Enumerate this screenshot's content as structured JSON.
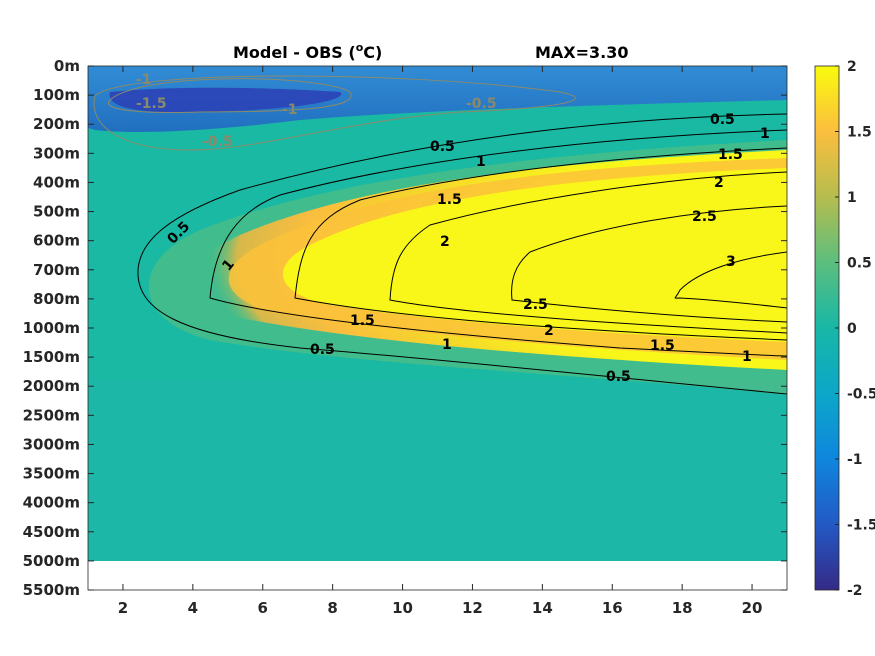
{
  "chart_data": {
    "type": "heatmap",
    "title": "Model - OBS (°C)",
    "title_left": "Model - OBS (",
    "title_sup": "o",
    "title_right": "C)",
    "max_label": "MAX=3.30",
    "x_ticks": [
      2,
      4,
      6,
      8,
      10,
      12,
      14,
      16,
      18,
      20
    ],
    "xlim": [
      1,
      21
    ],
    "y_ticks": [
      "0m",
      "100m",
      "200m",
      "300m",
      "400m",
      "500m",
      "600m",
      "700m",
      "800m",
      "1000m",
      "1500m",
      "2000m",
      "2500m",
      "3000m",
      "3500m",
      "4000m",
      "4500m",
      "5000m",
      "5500m"
    ],
    "y_reversed": true,
    "data_bottom_level": "5000m",
    "colormap": "parula",
    "clim": [
      -2,
      2
    ],
    "colorbar_ticks": [
      "2",
      "1.5",
      "1",
      "0.5",
      "0",
      "-0.5",
      "-1",
      "-1.5",
      "-2"
    ],
    "contour_levels_positive": [
      0.5,
      1,
      1.5,
      2,
      2.5,
      3
    ],
    "contour_levels_negative": [
      -0.5,
      -1,
      -1.5
    ],
    "contour_labels": [
      "0.5",
      "1",
      "1.5",
      "2",
      "2.5",
      "3",
      "0.5",
      "1",
      "1.5",
      "2",
      "2.5",
      "1.5",
      "1",
      "0.5",
      "0.5",
      "1",
      "1.5",
      "2",
      "-1",
      "-1.5",
      "-1",
      "-0.5",
      "-0.5"
    ],
    "colors": {
      "positive_contour": "#000000",
      "negative_contour": "#8a8a6a",
      "below_data": "#ffffff"
    }
  }
}
